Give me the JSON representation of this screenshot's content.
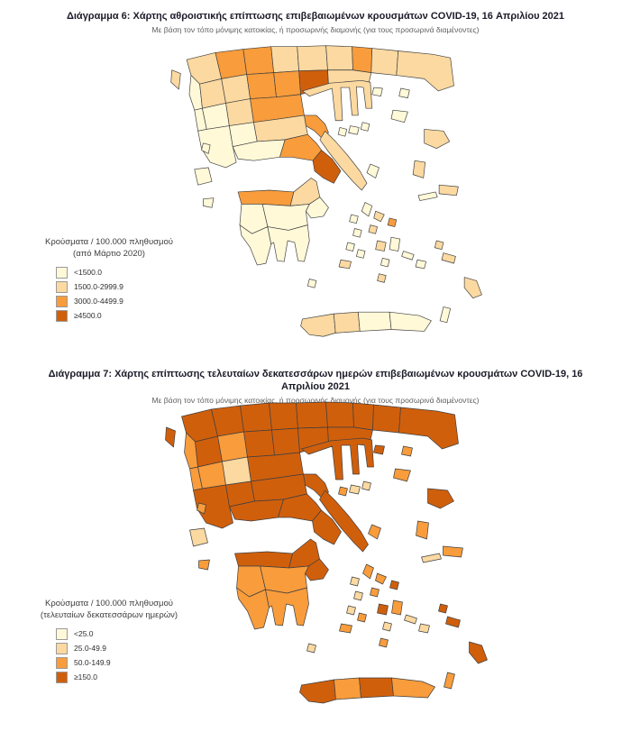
{
  "palette": [
    "#FFF9D8",
    "#FBD9A1",
    "#F89C3C",
    "#D05F0C"
  ],
  "map_style": {
    "border_color": "#3f3f3f",
    "sea_color": "#ffffff"
  },
  "charts": [
    {
      "id": "diagram-6",
      "title": "Διάγραμμα 6: Χάρτης αθροιστικής επίπτωσης επιβεβαιωμένων κρουσμάτων COVID-19, 16 Απριλίου 2021",
      "subtitle": "Με βάση τον τόπο μόνιμης κατοικίας, ή προσωρινής διαμονής (για τους προσωρινά διαμένοντες)",
      "legend": {
        "title_lines": [
          "Κρούσματα / 100.000 πληθυσμού",
          "(από Μάρτιο 2020)"
        ],
        "items": [
          {
            "label": "<1500.0",
            "color": "#FFF9D8"
          },
          {
            "label": "1500.0-2999.9",
            "color": "#FBD9A1"
          },
          {
            "label": "3000.0-4499.9",
            "color": "#F89C3C"
          },
          {
            "label": "≥4500.0",
            "color": "#D05F0C"
          }
        ]
      },
      "region_categories": [
        1,
        2,
        2,
        1,
        1,
        1,
        2,
        1,
        1,
        0,
        1,
        1,
        2,
        2,
        3,
        1,
        1,
        0,
        0,
        1,
        2,
        2,
        0,
        0,
        1,
        0,
        2,
        3,
        1,
        1,
        2,
        0,
        0,
        0,
        0,
        0,
        1,
        1,
        0,
        0,
        1,
        0,
        0,
        0,
        0,
        0,
        0,
        1,
        1,
        1,
        0,
        0,
        0,
        0,
        0,
        0,
        1,
        2,
        1,
        0,
        0,
        0,
        0,
        1,
        0,
        1,
        0,
        1,
        0,
        1,
        1,
        1,
        0,
        0,
        0
      ]
    },
    {
      "id": "diagram-7",
      "title": "Διάγραμμα 7: Χάρτης επίπτωσης τελευταίων δεκατεσσάρων ημερών επιβεβαιωμένων κρουσμάτων COVID-19, 16 Απριλίου 2021",
      "subtitle": "Με βάση τον τόπο μόνιμης κατοικίας, ή προσωρινής διαμονής (για τους προσωρινά διαμένοντες)",
      "legend": {
        "title_lines": [
          "Κρούσματα / 100.000 πληθυσμού",
          "(τελευταίων δεκατεσσάρων ημερών)"
        ],
        "items": [
          {
            "label": "<25.0",
            "color": "#FFF9D8"
          },
          {
            "label": "25.0-49.9",
            "color": "#FBD9A1"
          },
          {
            "label": "50.0-149.9",
            "color": "#F89C3C"
          },
          {
            "label": "≥150.0",
            "color": "#D05F0C"
          }
        ]
      },
      "region_categories": [
        3,
        3,
        3,
        3,
        3,
        3,
        3,
        3,
        3,
        2,
        3,
        2,
        3,
        3,
        3,
        3,
        3,
        2,
        2,
        1,
        3,
        3,
        3,
        3,
        3,
        3,
        3,
        3,
        3,
        3,
        3,
        3,
        2,
        2,
        2,
        2,
        3,
        2,
        3,
        2,
        3,
        2,
        1,
        2,
        3,
        2,
        2,
        3,
        2,
        2,
        1,
        2,
        1,
        1,
        2,
        2,
        2,
        3,
        2,
        1,
        1,
        1,
        2,
        3,
        2,
        2,
        1,
        2,
        1,
        3,
        3,
        3,
        2,
        1,
        1
      ]
    }
  ]
}
